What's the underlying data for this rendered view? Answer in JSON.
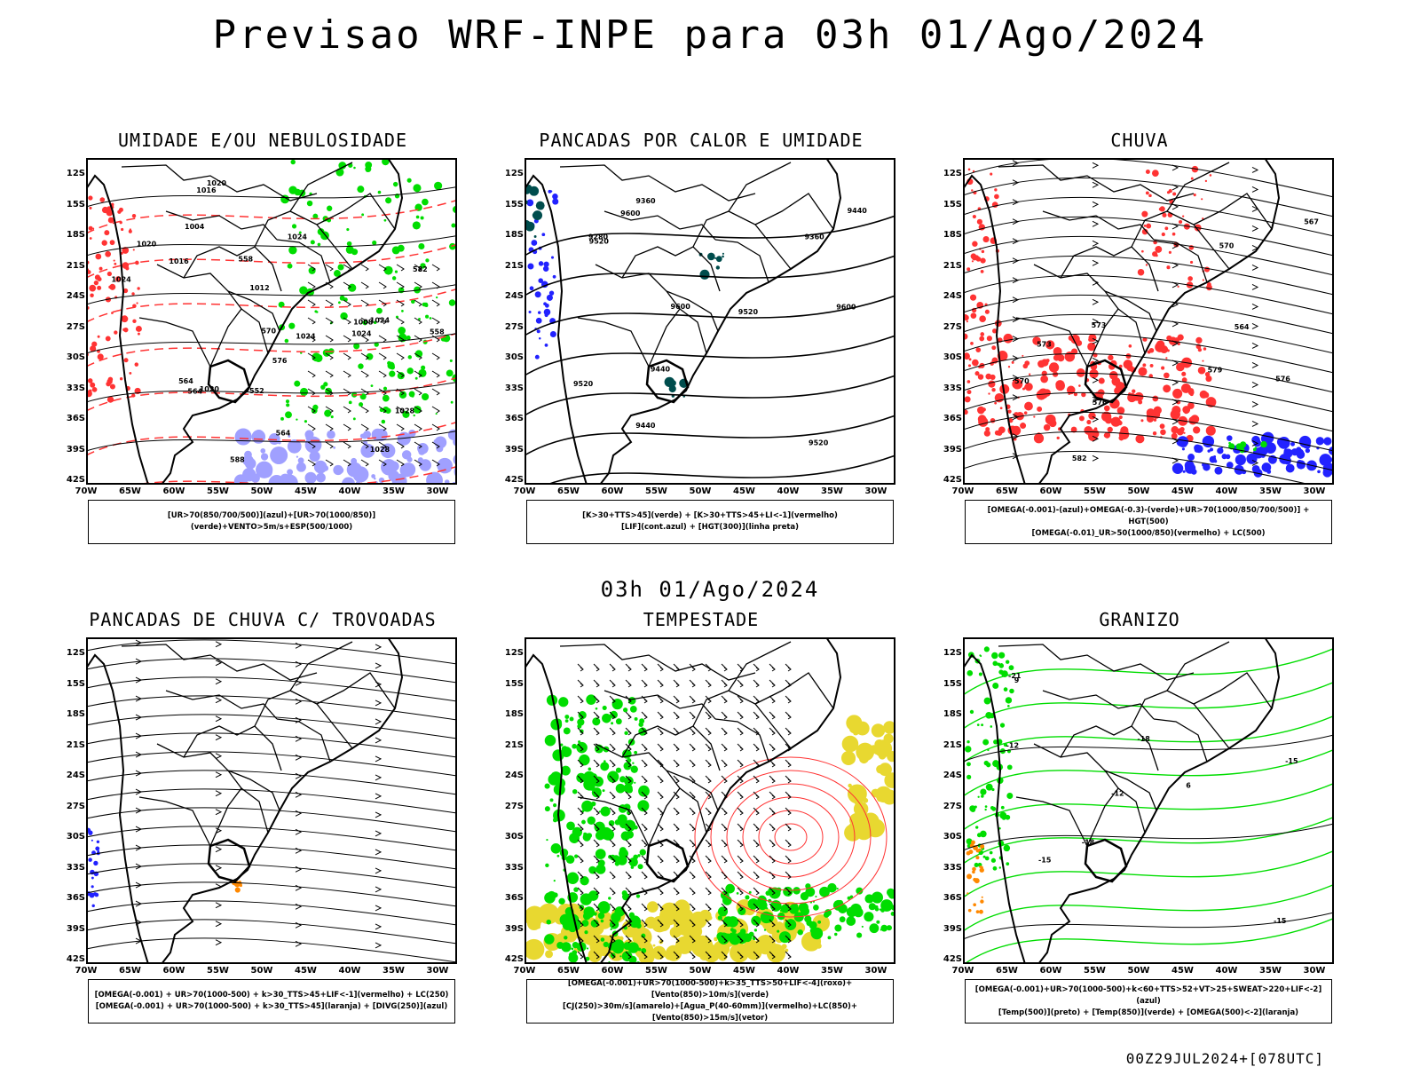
{
  "page": {
    "title": "Previsao WRF-INPE  para 03h 01/Ago/2024",
    "mid_title": "03h 01/Ago/2024",
    "footer": "00Z29JUL2024+[078UTC]"
  },
  "axes": {
    "lat_labels": [
      "12S",
      "15S",
      "18S",
      "21S",
      "24S",
      "27S",
      "30S",
      "33S",
      "36S",
      "39S",
      "42S"
    ],
    "lon_labels": [
      "70W",
      "65W",
      "60W",
      "55W",
      "50W",
      "45W",
      "40W",
      "35W",
      "30W"
    ]
  },
  "colors": {
    "green": "#00dd00",
    "red": "#ff3333",
    "blue": "#2222ff",
    "lavender": "#a0a0ff",
    "teal": "#004d4d",
    "orange": "#ff8800",
    "yellow": "#e8d830",
    "black": "#000000"
  },
  "panels": [
    {
      "title": "UMIDADE E/OU NEBULOSIDADE",
      "legend": [
        "[UR>70(850/700/500)](azul)+[UR>70(1000/850)](verde)+VENTO>5m/s+ESP(500/1000)"
      ],
      "labels": [
        "1016",
        "1020",
        "1012",
        "1016",
        "1020",
        "1024",
        "1024",
        "1024",
        "1028",
        "1024",
        "1020",
        "1008",
        "1028",
        "1024",
        "576",
        "564",
        "558",
        "570",
        "564",
        "552",
        "558",
        "564",
        "1004",
        "588",
        "582"
      ]
    },
    {
      "title": "PANCADAS POR CALOR E UMIDADE",
      "legend": [
        "[K>30+TTS>45](verde) + [K>30+TTS>45+LI<-1](vermelho)",
        "[LIF](cont.azul) + [HGT(300)](linha preta)"
      ],
      "labels": [
        "9600",
        "9600",
        "9600",
        "9520",
        "9520",
        "9520",
        "9520",
        "9440",
        "9440",
        "9440",
        "9360",
        "9360",
        "9280"
      ]
    },
    {
      "title": "CHUVA",
      "legend": [
        "[OMEGA(-0.001)-(azul)+OMEGA(-0.3)-(verde)+UR>70(1000/850/700/500)] + HGT(500)",
        "[OMEGA(-0.01)_UR>50(1000/850)(vermelho) + LC(500)"
      ],
      "labels": [
        "582",
        "579",
        "573",
        "576",
        "576",
        "570",
        "573",
        "567",
        "564",
        "570"
      ]
    },
    {
      "title": "PANCADAS DE CHUVA C/ TROVOADAS",
      "legend": [
        "[OMEGA(-0.001) + UR>70(1000-500) + k>30_TTS>45+LIF<-1](vermelho) + LC(250)",
        "[OMEGA(-0.001) + UR>70(1000-500) + k>30_TTS>45](laranja) + [DIVG(250)](azul)"
      ],
      "labels": []
    },
    {
      "title": "TEMPESTADE",
      "legend": [
        "[OMEGA(-0.001)+UR>70(1000-500)+k>35_TTS>50+LIF<-4](roxo)+[Vento(850)>10m/s](verde)",
        "[CJ(250)>30m/s](amarelo)+[Agua_P(40-60mm)](vermelho)+LC(850)+[Vento(850)>15m/s](vetor)"
      ],
      "labels": []
    },
    {
      "title": "GRANIZO",
      "legend": [
        "[OMEGA(-0.001)+UR>70(1000-500)+k<60+TTS>52+VT>25+SWEAT>220+LIF<-2](azul)",
        "[Temp(500)](preto) + [Temp(850)](verde) + [OMEGA(500)<-2](laranja)"
      ],
      "labels": [
        "-12",
        "-12",
        "-15",
        "-15",
        "-18",
        "-18",
        "-15",
        "-21",
        "9",
        "6"
      ]
    }
  ]
}
